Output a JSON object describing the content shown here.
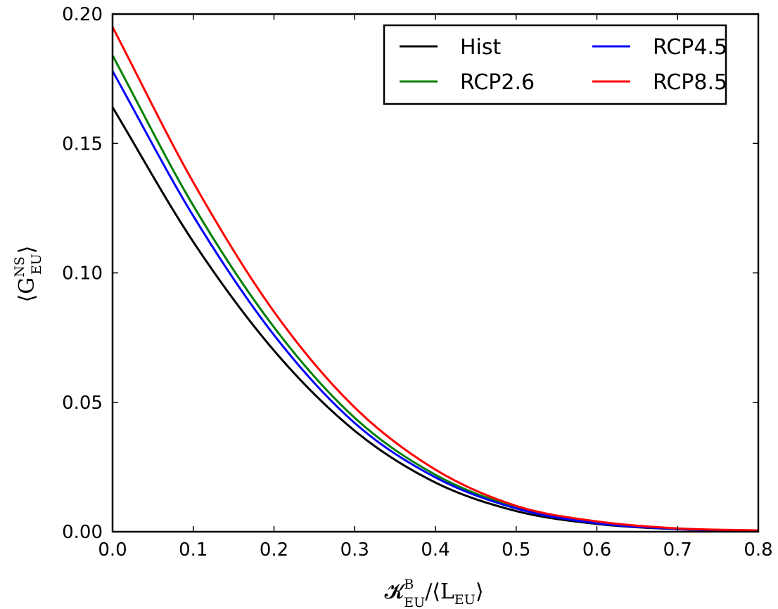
{
  "chart_data": {
    "type": "line",
    "xlim": [
      0.0,
      0.8
    ],
    "ylim": [
      0.0,
      0.2
    ],
    "x_ticks": [
      0.0,
      0.1,
      0.2,
      0.3,
      0.4,
      0.5,
      0.6,
      0.7,
      0.8
    ],
    "y_ticks": [
      0.0,
      0.05,
      0.1,
      0.15,
      0.2
    ],
    "x_tick_labels": [
      "0.0",
      "0.1",
      "0.2",
      "0.3",
      "0.4",
      "0.5",
      "0.6",
      "0.7",
      "0.8"
    ],
    "y_tick_labels": [
      "0.00",
      "0.05",
      "0.10",
      "0.15",
      "0.20"
    ],
    "xlabel": {
      "main": "𝓚",
      "sup": "B",
      "sub": "EU",
      "rest": "/⟨L",
      "rest_sub": "EU",
      "close": "⟩"
    },
    "ylabel": {
      "open": "⟨G",
      "sup": "NS",
      "sub": "EU",
      "close": "⟩"
    },
    "grid": false,
    "legend": {
      "placement": "top-right",
      "columns": 2
    },
    "x": [
      0.0,
      0.1,
      0.2,
      0.3,
      0.4,
      0.5,
      0.6,
      0.7,
      0.8
    ],
    "series": [
      {
        "name": "Hist",
        "color": "#000000",
        "values": [
          0.164,
          0.112,
          0.07,
          0.039,
          0.019,
          0.008,
          0.003,
          0.001,
          0.0003
        ]
      },
      {
        "name": "RCP2.6",
        "color": "#008000",
        "values": [
          0.184,
          0.126,
          0.079,
          0.044,
          0.022,
          0.0095,
          0.0035,
          0.0012,
          0.0004
        ]
      },
      {
        "name": "RCP4.5",
        "color": "#0000ff",
        "values": [
          0.178,
          0.122,
          0.076,
          0.042,
          0.021,
          0.009,
          0.0033,
          0.0011,
          0.0004
        ]
      },
      {
        "name": "RCP8.5",
        "color": "#ff0000",
        "values": [
          0.195,
          0.135,
          0.085,
          0.048,
          0.024,
          0.01,
          0.004,
          0.0013,
          0.0005
        ]
      }
    ],
    "legend_order": [
      "Hist",
      "RCP4.5",
      "RCP2.6",
      "RCP8.5"
    ]
  }
}
